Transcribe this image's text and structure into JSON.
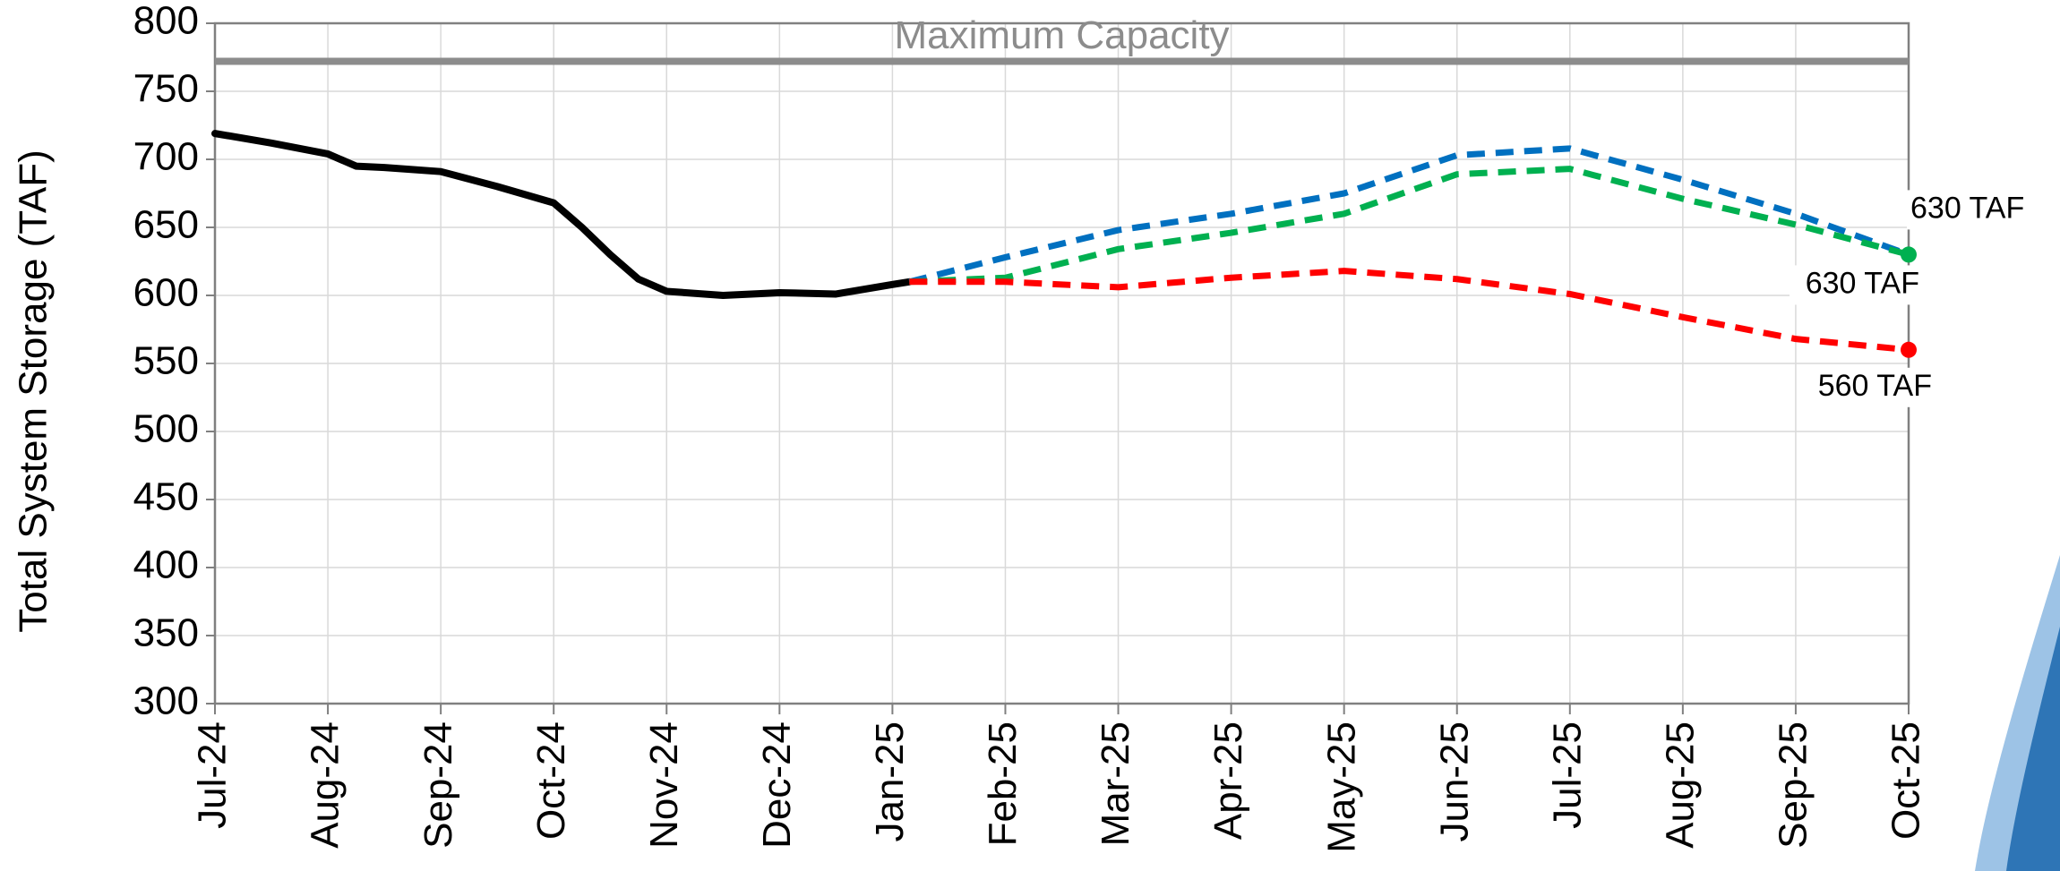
{
  "chart_data": {
    "type": "line",
    "y_label": "Total System Storage (TAF)",
    "xlim": [
      0,
      15
    ],
    "xticks": [
      {
        "value": 0,
        "label": "Jul-24"
      },
      {
        "value": 1,
        "label": "Aug-24"
      },
      {
        "value": 2,
        "label": "Sep-24"
      },
      {
        "value": 3,
        "label": "Oct-24"
      },
      {
        "value": 4,
        "label": "Nov-24"
      },
      {
        "value": 5,
        "label": "Dec-24"
      },
      {
        "value": 6,
        "label": "Jan-25"
      },
      {
        "value": 7,
        "label": "Feb-25"
      },
      {
        "value": 8,
        "label": "Mar-25"
      },
      {
        "value": 9,
        "label": "Apr-25"
      },
      {
        "value": 10,
        "label": "May-25"
      },
      {
        "value": 11,
        "label": "Jun-25"
      },
      {
        "value": 12,
        "label": "Jul-25"
      },
      {
        "value": 13,
        "label": "Aug-25"
      },
      {
        "value": 14,
        "label": "Sep-25"
      },
      {
        "value": 15,
        "label": "Oct-25"
      }
    ],
    "ylim": [
      300,
      800
    ],
    "yticks": [
      300,
      350,
      400,
      450,
      500,
      550,
      600,
      650,
      700,
      750,
      800
    ],
    "grid": true,
    "reference_line": {
      "value": 772,
      "label": "Maximum Capacity",
      "color": "#8c8c8c"
    },
    "series": [
      {
        "color": "#000000",
        "dashed": false,
        "x": [
          0,
          0.5,
          1,
          1.25,
          1.5,
          2,
          2.5,
          3,
          3.25,
          3.5,
          3.75,
          4,
          4.5,
          5,
          5.5,
          6,
          6.15
        ],
        "values": [
          719,
          712,
          704,
          695,
          694,
          691,
          680,
          668,
          650,
          630,
          612,
          603,
          600,
          602,
          601,
          608,
          610
        ]
      },
      {
        "color": "#0070c0",
        "dashed": true,
        "x": [
          6.15,
          7,
          8,
          9,
          10,
          11,
          12,
          13,
          14,
          15
        ],
        "values": [
          610,
          628,
          648,
          660,
          675,
          703,
          708,
          685,
          660,
          630
        ],
        "end_label": "630 TAF"
      },
      {
        "color": "#00b050",
        "dashed": true,
        "end_marker": true,
        "x": [
          6.15,
          7,
          8,
          9,
          10,
          11,
          12,
          13,
          14,
          15
        ],
        "values": [
          610,
          613,
          634,
          646,
          660,
          689,
          693,
          671,
          652,
          630
        ],
        "end_label": "630 TAF"
      },
      {
        "color": "#ff0000",
        "dashed": true,
        "end_marker": true,
        "x": [
          6.15,
          7,
          8,
          9,
          10,
          11,
          12,
          13,
          14,
          15
        ],
        "values": [
          610,
          610,
          606,
          613,
          618,
          612,
          601,
          584,
          568,
          560
        ],
        "end_label": "560 TAF"
      }
    ]
  }
}
